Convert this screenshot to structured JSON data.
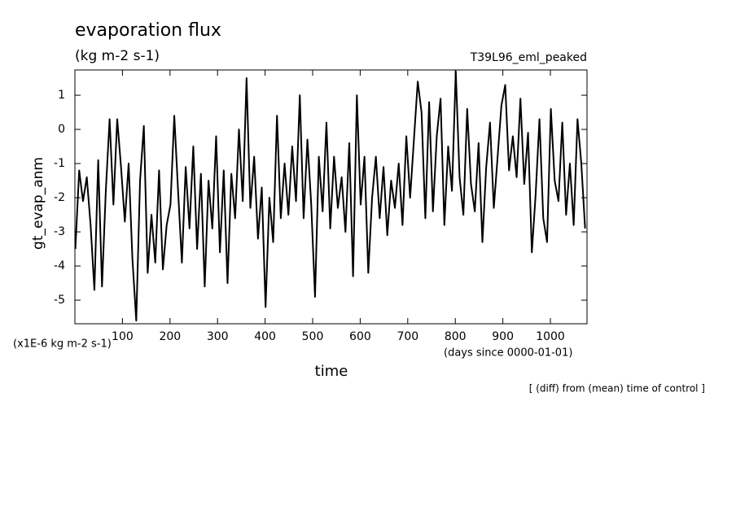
{
  "chart_data": {
    "type": "line",
    "title": "evaporation flux",
    "subtitle": "(kg m-2 s-1)",
    "experiment": "T39L96_eml_peaked",
    "y_label": "gt_evap_anm",
    "y_units": "(x1E-6 kg m-2 s-1)",
    "x_label": "time",
    "x_units": "(days since 0000-01-01)",
    "note": "[ (diff) from (mean) time of control ]",
    "xlim": [
      0,
      1077
    ],
    "ylim": [
      -5.69,
      1.74
    ],
    "xticks": [
      100,
      200,
      300,
      400,
      500,
      600,
      700,
      800,
      900,
      1000
    ],
    "yticks": [
      -5,
      -4,
      -3,
      -2,
      -1,
      0,
      1
    ],
    "color": "#000000",
    "x": [
      1,
      9,
      17,
      25,
      33,
      41,
      49,
      57,
      65,
      73,
      81,
      89,
      97,
      105,
      113,
      121,
      129,
      137,
      145,
      153,
      161,
      169,
      177,
      185,
      193,
      201,
      209,
      217,
      225,
      233,
      241,
      249,
      257,
      265,
      273,
      281,
      289,
      297,
      305,
      313,
      321,
      329,
      337,
      345,
      353,
      361,
      369,
      377,
      385,
      393,
      401,
      409,
      417,
      425,
      433,
      441,
      449,
      457,
      465,
      473,
      481,
      489,
      497,
      505,
      513,
      521,
      529,
      537,
      545,
      553,
      561,
      569,
      577,
      585,
      593,
      601,
      609,
      617,
      625,
      633,
      641,
      649,
      657,
      665,
      673,
      681,
      689,
      697,
      705,
      713,
      721,
      729,
      737,
      745,
      753,
      761,
      769,
      777,
      785,
      793,
      801,
      809,
      817,
      825,
      833,
      841,
      849,
      857,
      865,
      873,
      881,
      889,
      897,
      905,
      913,
      921,
      929,
      937,
      945,
      953,
      961,
      969,
      977,
      985,
      993,
      1001,
      1009,
      1017,
      1025,
      1033,
      1041,
      1049,
      1057,
      1065,
      1073
    ],
    "values": [
      -3.5,
      -1.2,
      -2.1,
      -1.4,
      -2.8,
      -4.7,
      -0.9,
      -4.6,
      -1.8,
      0.3,
      -2.2,
      0.3,
      -1.1,
      -2.7,
      -1.0,
      -3.8,
      -5.6,
      -1.5,
      0.1,
      -4.2,
      -2.5,
      -3.9,
      -1.2,
      -4.1,
      -2.8,
      -2.2,
      0.4,
      -1.8,
      -3.9,
      -1.1,
      -2.9,
      -0.5,
      -3.5,
      -1.3,
      -4.6,
      -1.5,
      -2.9,
      -0.2,
      -3.6,
      -1.2,
      -4.5,
      -1.3,
      -2.6,
      0.0,
      -2.1,
      1.5,
      -2.3,
      -0.8,
      -3.2,
      -1.7,
      -5.2,
      -2.0,
      -3.3,
      0.4,
      -2.6,
      -1.0,
      -2.5,
      -0.5,
      -2.1,
      1.0,
      -2.6,
      -0.3,
      -2.2,
      -4.9,
      -0.8,
      -2.4,
      0.2,
      -2.9,
      -0.8,
      -2.3,
      -1.4,
      -3.0,
      -0.4,
      -4.3,
      1.0,
      -2.2,
      -0.8,
      -4.2,
      -2.0,
      -0.8,
      -2.6,
      -1.1,
      -3.1,
      -1.5,
      -2.3,
      -1.0,
      -2.8,
      -0.2,
      -2.0,
      -0.3,
      1.4,
      0.5,
      -2.6,
      0.8,
      -2.4,
      -0.2,
      0.9,
      -2.8,
      -0.5,
      -1.8,
      1.7,
      -1.4,
      -2.5,
      0.6,
      -1.6,
      -2.4,
      -0.4,
      -3.3,
      -1.1,
      0.2,
      -2.3,
      -0.8,
      0.7,
      1.3,
      -1.2,
      -0.2,
      -1.4,
      0.9,
      -1.6,
      -0.1,
      -3.6,
      -1.9,
      0.3,
      -2.6,
      -3.3,
      0.6,
      -1.5,
      -2.1,
      0.2,
      -2.5,
      -1.0,
      -2.8,
      0.3,
      -1.0,
      -2.9
    ]
  }
}
